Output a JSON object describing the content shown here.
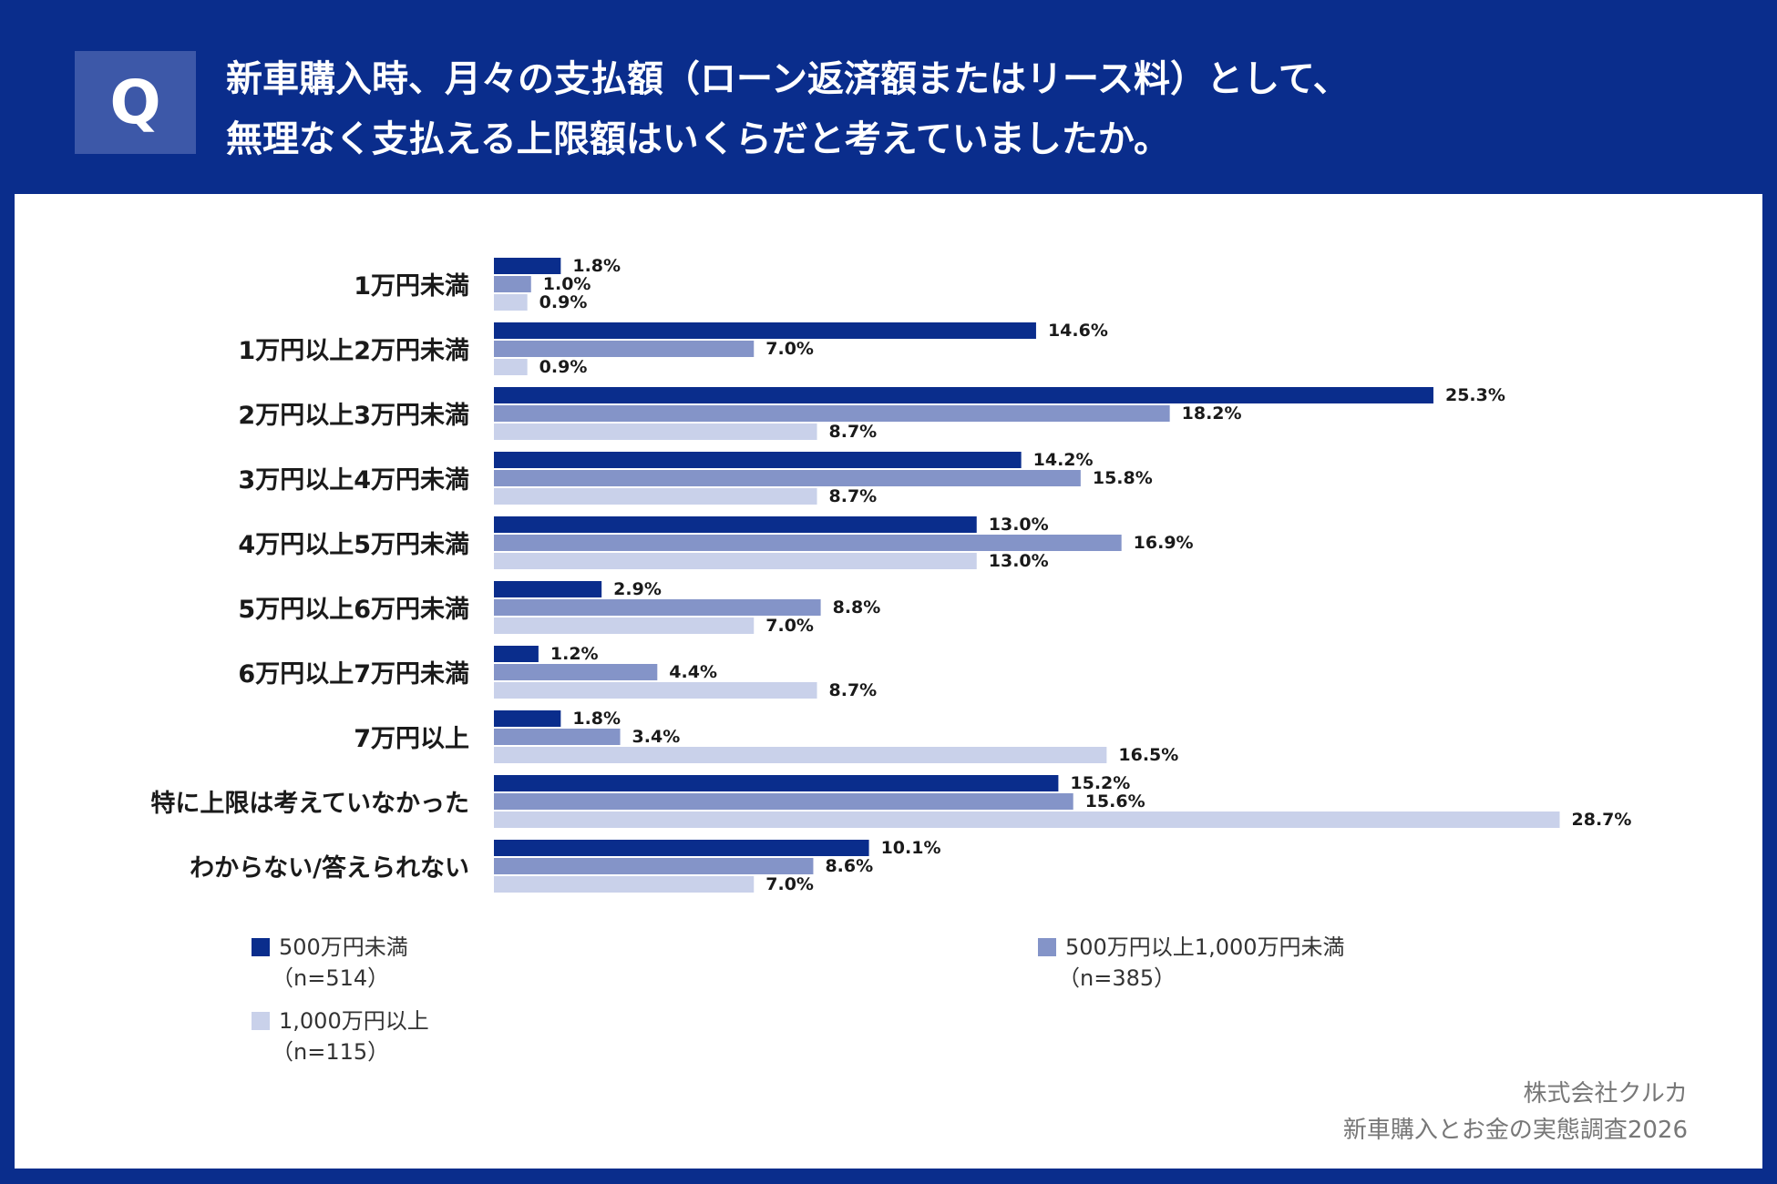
{
  "header": {
    "badge": "Q",
    "question_line1": "新車購入時、月々の支払額（ローン返済額またはリース料）として、",
    "question_line2": "無理なく支払える上限額はいくらだと考えていましたか。"
  },
  "colors": {
    "background": "#0a2d8c",
    "series1": "#0a2d8c",
    "series2": "#8494c8",
    "series3": "#c9d1ea"
  },
  "chart_data": {
    "type": "bar",
    "orientation": "horizontal",
    "unit": "%",
    "xlim": [
      0,
      30
    ],
    "categories": [
      "1万円未満",
      "1万円以上2万円未満",
      "2万円以上3万円未満",
      "3万円以上4万円未満",
      "4万円以上5万円未満",
      "5万円以上6万円未満",
      "6万円以上7万円未満",
      "7万円以上",
      "特に上限は考えていなかった",
      "わからない/答えられない"
    ],
    "series": [
      {
        "name": "500万円未満",
        "n_label": "（n=514）",
        "values": [
          1.8,
          14.6,
          25.3,
          14.2,
          13.0,
          2.9,
          1.2,
          1.8,
          15.2,
          10.1
        ]
      },
      {
        "name": "500万円以上1,000万円未満",
        "n_label": "（n=385）",
        "values": [
          1.0,
          7.0,
          18.2,
          15.8,
          16.9,
          8.8,
          4.4,
          3.4,
          15.6,
          8.6
        ]
      },
      {
        "name": "1,000万円以上",
        "n_label": "（n=115）",
        "values": [
          0.9,
          0.9,
          8.7,
          8.7,
          13.0,
          7.0,
          8.7,
          16.5,
          28.7,
          7.0
        ]
      }
    ],
    "legend": "bottom"
  },
  "footer": {
    "company": "株式会社クルカ",
    "survey": "新車購入とお金の実態調査2026"
  }
}
